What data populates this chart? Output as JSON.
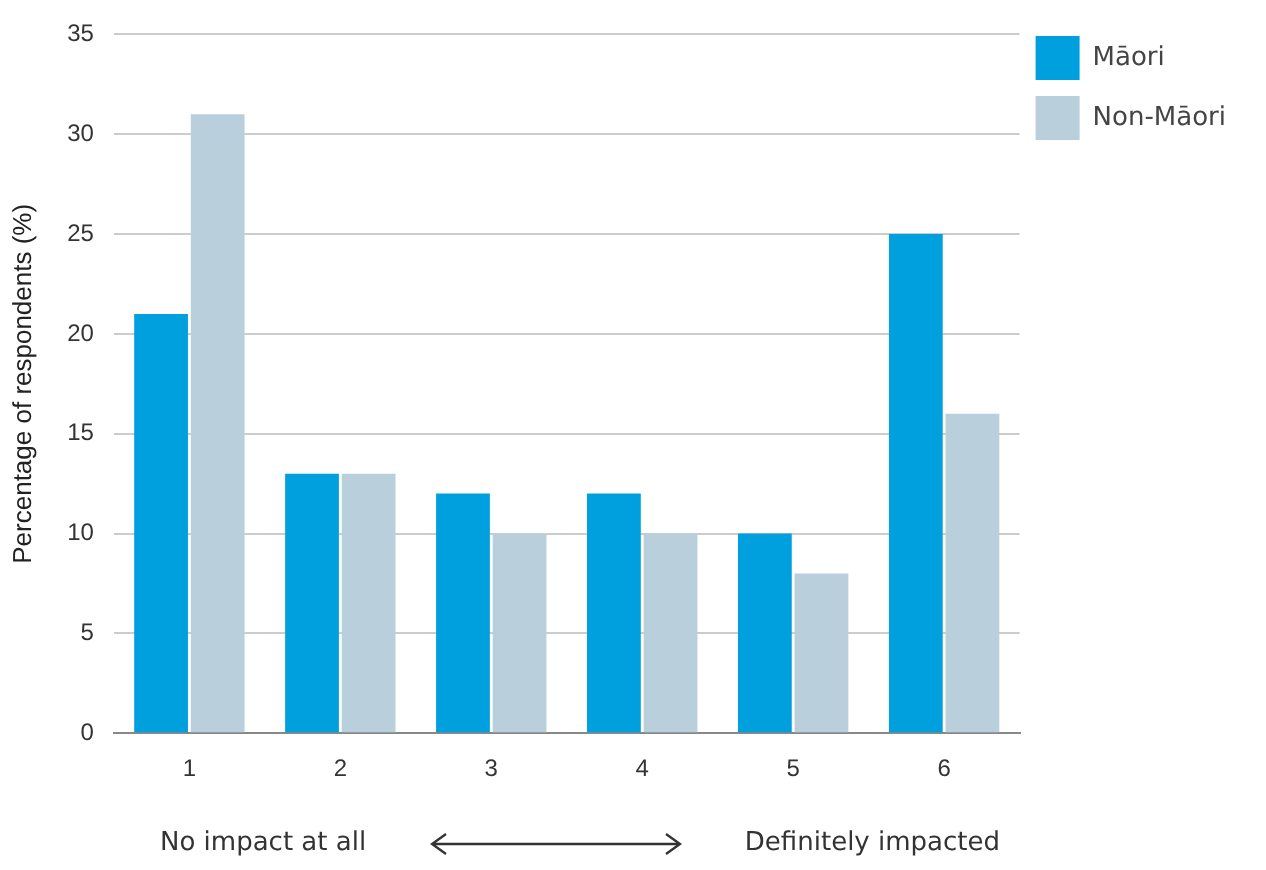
{
  "chart_data": {
    "type": "bar",
    "ylabel": "Percentage of respondents (%)",
    "categories": [
      "1",
      "2",
      "3",
      "4",
      "5",
      "6"
    ],
    "series": [
      {
        "name": "Māori",
        "color": "#00a0df",
        "values": [
          21,
          13,
          12,
          12,
          10,
          25
        ]
      },
      {
        "name": "Non-Māori",
        "color": "#b9cfdc",
        "values": [
          31,
          13,
          10,
          10,
          8,
          16
        ]
      }
    ],
    "ylim": [
      0,
      35
    ],
    "yticks": [
      0,
      5,
      10,
      15,
      20,
      25,
      30,
      35
    ],
    "grid": "y",
    "legend": "top right",
    "annotations": [
      "No impact at all",
      "Definitely impacted"
    ]
  }
}
